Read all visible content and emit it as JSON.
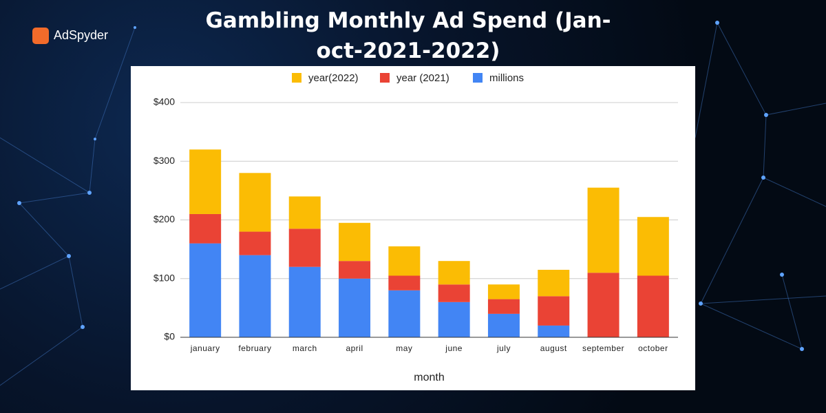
{
  "brand": "AdSpyder",
  "chart_data": {
    "type": "stacked-bar",
    "title": "Gambling Monthly Ad Spend (Jan-oct-2021-2022)",
    "x_label": "month",
    "categories": [
      "january",
      "february",
      "march",
      "april",
      "may",
      "june",
      "july",
      "august",
      "september",
      "october"
    ],
    "series": [
      {
        "name": "millions",
        "color": "#4285f4",
        "values": [
          160,
          140,
          120,
          100,
          80,
          60,
          40,
          20,
          0,
          0
        ]
      },
      {
        "name": "year (2021)",
        "color": "#ea4335",
        "values": [
          50,
          40,
          65,
          30,
          25,
          30,
          25,
          50,
          110,
          105
        ]
      },
      {
        "name": "year(2022)",
        "color": "#fbbc04",
        "values": [
          110,
          100,
          55,
          65,
          50,
          40,
          25,
          45,
          145,
          100
        ]
      }
    ],
    "ylim": [
      0,
      400
    ],
    "yticks": [
      {
        "value": 0,
        "label": "$0"
      },
      {
        "value": 100,
        "label": "$100"
      },
      {
        "value": 200,
        "label": "$200"
      },
      {
        "value": 300,
        "label": "$300"
      },
      {
        "value": 400,
        "label": "$400"
      }
    ],
    "grid": true,
    "legend": "top"
  }
}
